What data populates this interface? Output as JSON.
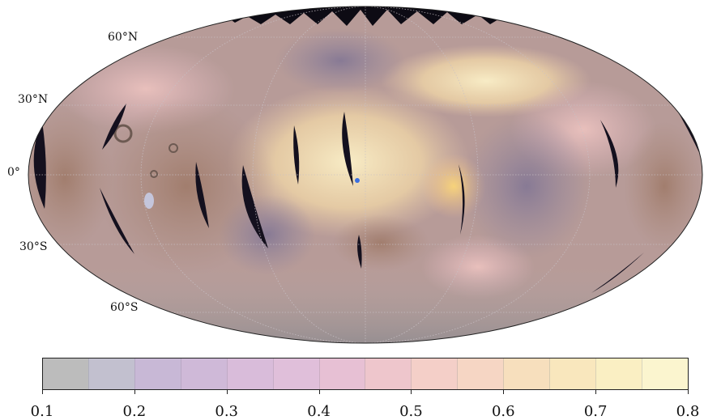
{
  "map": {
    "projection": "mollweide",
    "lat_labels": [
      "60°N",
      "30°N",
      "0°",
      "30°S",
      "60°S"
    ],
    "marker_color": "#3b6fe0"
  },
  "colorbar": {
    "ticks": [
      "0.1",
      "0.2",
      "0.3",
      "0.4",
      "0.5",
      "0.6",
      "0.7",
      "0.8"
    ],
    "range": [
      0.1,
      0.8
    ],
    "bin_step": 0.05,
    "colors": [
      "#bcbcbc",
      "#c2c0cf",
      "#c8b8d6",
      "#cfb9d8",
      "#d9bcda",
      "#e0bfda",
      "#e7c0d4",
      "#eec6cc",
      "#f4cfc8",
      "#f6d6c4",
      "#f7dfbd",
      "#f9e7bd",
      "#faefc3",
      "#fbf5cf"
    ]
  }
}
